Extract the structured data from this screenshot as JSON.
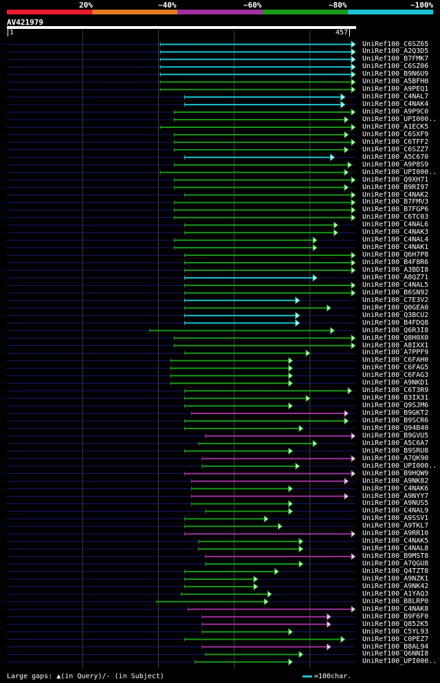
{
  "legend": {
    "labels": [
      "20%",
      "~40%",
      "~60%",
      "~80%",
      "~100%"
    ],
    "colors": [
      "#e8192e",
      "#e07a1c",
      "#a030a0",
      "#1a9a1a",
      "#1cc4d4"
    ]
  },
  "query": {
    "name": "AV421979",
    "start": "1",
    "end": "457"
  },
  "footer": {
    "gaps_text": "Large gaps: ▲(in Query)/- (in Subject)",
    "scale_text": "=100char."
  },
  "hits": [
    {
      "label": "UniRef100_C6SZ65",
      "from": 44,
      "to": 100,
      "color": "#1cc4d4"
    },
    {
      "label": "UniRef100_A2Q3D5",
      "from": 44,
      "to": 100,
      "color": "#1cc4d4"
    },
    {
      "label": "UniRef100_B7FMK7",
      "from": 44,
      "to": 100,
      "color": "#1cc4d4"
    },
    {
      "label": "UniRef100_C6SZ06",
      "from": 44,
      "to": 100,
      "color": "#1cc4d4"
    },
    {
      "label": "UniRef100_B9N6U9",
      "from": 44,
      "to": 100,
      "color": "#1cc4d4"
    },
    {
      "label": "UniRef100_A5BFH0",
      "from": 44,
      "to": 100,
      "color": "#1a9a1a"
    },
    {
      "label": "UniRef100_A9PEQ1",
      "from": 44,
      "to": 100,
      "color": "#1a9a1a"
    },
    {
      "label": "UniRef100_C4NAL7",
      "from": 51,
      "to": 97,
      "color": "#1cc4d4"
    },
    {
      "label": "UniRef100_C4NAK4",
      "from": 51,
      "to": 97,
      "color": "#1cc4d4"
    },
    {
      "label": "UniRef100_A9P9C0",
      "from": 48,
      "to": 100,
      "color": "#1a9a1a"
    },
    {
      "label": "UniRef100_UPI000..",
      "from": 48,
      "to": 98,
      "color": "#1a9a1a"
    },
    {
      "label": "UniRef100_A1ECK5",
      "from": 44,
      "to": 100,
      "color": "#1a9a1a"
    },
    {
      "label": "UniRef100_C6SXF9",
      "from": 48,
      "to": 98,
      "color": "#1a9a1a"
    },
    {
      "label": "UniRef100_C6TFF2",
      "from": 48,
      "to": 100,
      "color": "#1a9a1a"
    },
    {
      "label": "UniRef100_C6SZZ7",
      "from": 48,
      "to": 98,
      "color": "#1a9a1a"
    },
    {
      "label": "UniRef100_A5C670",
      "from": 51,
      "to": 94,
      "color": "#1cc4d4"
    },
    {
      "label": "UniRef100_A9P8S9",
      "from": 48,
      "to": 99,
      "color": "#1a9a1a"
    },
    {
      "label": "UniRef100_UPI000..",
      "from": 44,
      "to": 98,
      "color": "#1a9a1a"
    },
    {
      "label": "UniRef100_Q9XH71",
      "from": 48,
      "to": 100,
      "color": "#1a9a1a"
    },
    {
      "label": "UniRef100_B9RI97",
      "from": 48,
      "to": 98,
      "color": "#1a9a1a"
    },
    {
      "label": "UniRef100_C4NAK2",
      "from": 51,
      "to": 100,
      "color": "#1a9a1a"
    },
    {
      "label": "UniRef100_B7FMV3",
      "from": 48,
      "to": 100,
      "color": "#1a9a1a"
    },
    {
      "label": "UniRef100_B7FGP6",
      "from": 48,
      "to": 100,
      "color": "#1a9a1a"
    },
    {
      "label": "UniRef100_C6TC03",
      "from": 48,
      "to": 100,
      "color": "#1a9a1a"
    },
    {
      "label": "UniRef100_C4NAL6",
      "from": 51,
      "to": 95,
      "color": "#1a9a1a"
    },
    {
      "label": "UniRef100_C4NAK3",
      "from": 51,
      "to": 95,
      "color": "#1a9a1a"
    },
    {
      "label": "UniRef100_C4NAL4",
      "from": 48,
      "to": 89,
      "color": "#1a9a1a"
    },
    {
      "label": "UniRef100_C4NAK1",
      "from": 48,
      "to": 89,
      "color": "#1a9a1a"
    },
    {
      "label": "UniRef100_Q6H7P8",
      "from": 51,
      "to": 100,
      "color": "#1a9a1a"
    },
    {
      "label": "UniRef100_B4F8R6",
      "from": 51,
      "to": 100,
      "color": "#1a9a1a"
    },
    {
      "label": "UniRef100_A3BDI8",
      "from": 51,
      "to": 100,
      "color": "#1a9a1a"
    },
    {
      "label": "UniRef100_A8QZ71",
      "from": 51,
      "to": 89,
      "color": "#1cc4d4"
    },
    {
      "label": "UniRef100_C4NAL5",
      "from": 51,
      "to": 100,
      "color": "#1a9a1a"
    },
    {
      "label": "UniRef100_B6SN92",
      "from": 51,
      "to": 100,
      "color": "#1a9a1a"
    },
    {
      "label": "UniRef100_C7E3V2",
      "from": 51,
      "to": 84,
      "color": "#1cc4d4"
    },
    {
      "label": "UniRef100_Q0GEA0",
      "from": 51,
      "to": 93,
      "color": "#1a9a1a"
    },
    {
      "label": "UniRef100_Q3BCU2",
      "from": 51,
      "to": 84,
      "color": "#1cc4d4"
    },
    {
      "label": "UniRef100_B4FDQ8",
      "from": 51,
      "to": 84,
      "color": "#1cc4d4"
    },
    {
      "label": "UniRef100_Q6R3I8",
      "from": 41,
      "to": 94,
      "color": "#1a9a1a"
    },
    {
      "label": "UniRef100_Q8H0X0",
      "from": 48,
      "to": 100,
      "color": "#1a9a1a"
    },
    {
      "label": "UniRef100_A8IXX1",
      "from": 48,
      "to": 100,
      "color": "#1a9a1a"
    },
    {
      "label": "UniRef100_A7PPF9",
      "from": 51,
      "to": 87,
      "color": "#1a9a1a"
    },
    {
      "label": "UniRef100_C6FAH0",
      "from": 47,
      "to": 82,
      "color": "#1a9a1a"
    },
    {
      "label": "UniRef100_C6FAG5",
      "from": 47,
      "to": 82,
      "color": "#1a9a1a"
    },
    {
      "label": "UniRef100_C6FAG3",
      "from": 47,
      "to": 82,
      "color": "#1a9a1a"
    },
    {
      "label": "UniRef100_A9NKD1",
      "from": 47,
      "to": 82,
      "color": "#1a9a1a"
    },
    {
      "label": "UniRef100_C6T3R9",
      "from": 51,
      "to": 99,
      "color": "#1a9a1a"
    },
    {
      "label": "UniRef100_B3IX31",
      "from": 51,
      "to": 87,
      "color": "#1a9a1a"
    },
    {
      "label": "UniRef100_Q9SJM6",
      "from": 51,
      "to": 82,
      "color": "#1a9a1a"
    },
    {
      "label": "UniRef100_B9GKT2",
      "from": 53,
      "to": 98,
      "color": "#a030a0"
    },
    {
      "label": "UniRef100_B9SCR6",
      "from": 51,
      "to": 98,
      "color": "#1a9a1a"
    },
    {
      "label": "UniRef100_Q94B40",
      "from": 51,
      "to": 85,
      "color": "#1a9a1a"
    },
    {
      "label": "UniRef100_B9GVU5",
      "from": 57,
      "to": 100,
      "color": "#a030a0"
    },
    {
      "label": "UniRef100_A5C6A7",
      "from": 55,
      "to": 89,
      "color": "#1a9a1a"
    },
    {
      "label": "UniRef100_B9SRU8",
      "from": 51,
      "to": 82,
      "color": "#1a9a1a"
    },
    {
      "label": "UniRef100_A7QK90",
      "from": 56,
      "to": 100,
      "color": "#a030a0"
    },
    {
      "label": "UniRef100_UPI000..",
      "from": 56,
      "to": 84,
      "color": "#1a9a1a"
    },
    {
      "label": "UniRef100_B9HQW9",
      "from": 51,
      "to": 100,
      "color": "#a030a0"
    },
    {
      "label": "UniRef100_A9NK82",
      "from": 53,
      "to": 98,
      "color": "#a030a0"
    },
    {
      "label": "UniRef100_C4NAK6",
      "from": 53,
      "to": 82,
      "color": "#1a9a1a"
    },
    {
      "label": "UniRef100_A9NYY7",
      "from": 53,
      "to": 98,
      "color": "#a030a0"
    },
    {
      "label": "UniRef100_A9NUS5",
      "from": 53,
      "to": 82,
      "color": "#1a9a1a"
    },
    {
      "label": "UniRef100_C4NAL9",
      "from": 57,
      "to": 82,
      "color": "#1a9a1a"
    },
    {
      "label": "UniRef100_A9SSV1",
      "from": 51,
      "to": 75,
      "color": "#1a9a1a"
    },
    {
      "label": "UniRef100_A9TKL7",
      "from": 51,
      "to": 79,
      "color": "#1a9a1a"
    },
    {
      "label": "UniRef100_A9RR10",
      "from": 51,
      "to": 100,
      "color": "#a030a0"
    },
    {
      "label": "UniRef100_C4NAK5",
      "from": 55,
      "to": 85,
      "color": "#1a9a1a"
    },
    {
      "label": "UniRef100_C4NAL8",
      "from": 55,
      "to": 85,
      "color": "#1a9a1a"
    },
    {
      "label": "UniRef100_B9MST8",
      "from": 57,
      "to": 100,
      "color": "#a030a0"
    },
    {
      "label": "UniRef100_A7QGU8",
      "from": 57,
      "to": 85,
      "color": "#1a9a1a"
    },
    {
      "label": "UniRef100_Q4TZT8",
      "from": 51,
      "to": 78,
      "color": "#1a9a1a"
    },
    {
      "label": "UniRef100_A9NZK1",
      "from": 51,
      "to": 72,
      "color": "#1a9a1a"
    },
    {
      "label": "UniRef100_A9NK42",
      "from": 51,
      "to": 72,
      "color": "#1a9a1a"
    },
    {
      "label": "UniRef100_A1YAQ3",
      "from": 50,
      "to": 76,
      "color": "#1a9a1a"
    },
    {
      "label": "UniRef100_B8LRP0",
      "from": 43,
      "to": 75,
      "color": "#1a9a1a"
    },
    {
      "label": "UniRef100_C4NAK8",
      "from": 52,
      "to": 100,
      "color": "#a030a0"
    },
    {
      "label": "UniRef100_B9F6F0",
      "from": 56,
      "to": 93,
      "color": "#a030a0"
    },
    {
      "label": "UniRef100_Q852K5",
      "from": 56,
      "to": 93,
      "color": "#a030a0"
    },
    {
      "label": "UniRef100_C5YL93",
      "from": 56,
      "to": 82,
      "color": "#1a9a1a"
    },
    {
      "label": "UniRef100_C0PEZ7",
      "from": 51,
      "to": 97,
      "color": "#1a9a1a"
    },
    {
      "label": "UniRef100_B8AL94",
      "from": 56,
      "to": 93,
      "color": "#a030a0"
    },
    {
      "label": "UniRef100_Q6NNI8",
      "from": 57,
      "to": 85,
      "color": "#1a9a1a"
    },
    {
      "label": "UniRef100_UPI000..",
      "from": 54,
      "to": 82,
      "color": "#1a9a1a"
    }
  ]
}
